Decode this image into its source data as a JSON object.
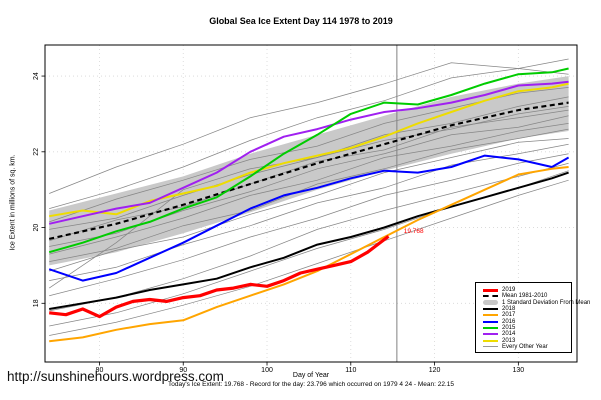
{
  "title": "Global Sea Ice Extent Day 114 1978 to 2019",
  "url_watermark": "http://sunshinehours.wordpress.com",
  "footer": {
    "stats": "Today's Ice Extent: 19.768  - Record for the day: 23.796 which occurred on 1979 4 24  - Mean: 22.15"
  },
  "chart_data": {
    "type": "line",
    "title": "Global Sea Ice Extent Day 114 1978 to 2019",
    "xlabel": "Day of Year",
    "ylabel": "Ice Extent in millions of sq. km.",
    "xlim": [
      73.5,
      137
    ],
    "ylim": [
      16.45,
      24.82
    ],
    "xticks": [
      80,
      90,
      100,
      110,
      120,
      130
    ],
    "yticks": [
      18,
      20,
      22,
      24
    ],
    "grid": "dotted-lightgray",
    "legend_position": "bottom-right-inside",
    "today_line_day": 115.5,
    "annotations": [
      {
        "text": "19.768",
        "day": 116.2,
        "value": 19.85,
        "color": "#FF0000"
      }
    ],
    "legend": [
      {
        "label": "2019",
        "color": "#FF0000",
        "style": "thick"
      },
      {
        "label": "Mean 1981-2010",
        "color": "#000000",
        "style": "dashed"
      },
      {
        "label": "1 Standard Deviation From Mean",
        "color": "#C8C8C8",
        "style": "band"
      },
      {
        "label": "2018",
        "color": "#000000",
        "style": "medium"
      },
      {
        "label": "2017",
        "color": "#FFA500",
        "style": "medium"
      },
      {
        "label": "2016",
        "color": "#0000FF",
        "style": "medium"
      },
      {
        "label": "2015",
        "color": "#00CC00",
        "style": "medium"
      },
      {
        "label": "2014",
        "color": "#A020F0",
        "style": "medium"
      },
      {
        "label": "2013",
        "color": "#EEDC00",
        "style": "medium"
      },
      {
        "label": "Every Other Year",
        "color": "#999999",
        "style": "thin"
      }
    ],
    "series_days": [
      74,
      78,
      82,
      86,
      90,
      94,
      98,
      102,
      106,
      110,
      114,
      118,
      122,
      126,
      130,
      134,
      136
    ],
    "series": [
      {
        "name": "2013",
        "color": "#EEDC00",
        "width": 2,
        "values": [
          20.3,
          20.45,
          20.35,
          20.7,
          20.9,
          21.1,
          21.45,
          21.7,
          21.9,
          22.1,
          22.4,
          22.75,
          23.05,
          23.35,
          23.6,
          23.7,
          23.8
        ]
      },
      {
        "name": "2014",
        "color": "#A020F0",
        "width": 2,
        "values": [
          20.1,
          20.3,
          20.5,
          20.65,
          21.05,
          21.45,
          22.0,
          22.4,
          22.6,
          22.85,
          23.05,
          23.15,
          23.3,
          23.5,
          23.75,
          23.8,
          23.85
        ]
      },
      {
        "name": "2015",
        "color": "#00CC00",
        "width": 2,
        "values": [
          19.35,
          19.6,
          19.9,
          20.15,
          20.5,
          20.8,
          21.35,
          21.95,
          22.45,
          23.0,
          23.3,
          23.25,
          23.5,
          23.8,
          24.05,
          24.1,
          24.2
        ]
      },
      {
        "name": "2016",
        "color": "#0000FF",
        "width": 2,
        "values": [
          18.9,
          18.6,
          18.8,
          19.2,
          19.6,
          20.05,
          20.5,
          20.85,
          21.05,
          21.3,
          21.5,
          21.45,
          21.6,
          21.9,
          21.8,
          21.6,
          21.85
        ]
      },
      {
        "name": "2018",
        "color": "#000000",
        "width": 2,
        "values": [
          17.85,
          18.0,
          18.15,
          18.35,
          18.5,
          18.65,
          18.95,
          19.2,
          19.55,
          19.75,
          20.0,
          20.3,
          20.55,
          20.8,
          21.05,
          21.3,
          21.45
        ]
      },
      {
        "name": "2017",
        "color": "#FFA500",
        "width": 2,
        "values": [
          17.0,
          17.1,
          17.3,
          17.45,
          17.55,
          17.9,
          18.2,
          18.5,
          18.85,
          19.3,
          19.75,
          20.2,
          20.6,
          21.0,
          21.4,
          21.55,
          21.6
        ]
      }
    ],
    "series_2019": {
      "name": "2019",
      "color": "#FF0000",
      "width": 3.2,
      "days": [
        74,
        76,
        78,
        80,
        82,
        84,
        86,
        88,
        90,
        92,
        94,
        96,
        98,
        100,
        102,
        104,
        106,
        108,
        110,
        112,
        114.5
      ],
      "values": [
        17.75,
        17.7,
        17.85,
        17.65,
        17.9,
        18.05,
        18.1,
        18.05,
        18.15,
        18.2,
        18.35,
        18.4,
        18.5,
        18.45,
        18.6,
        18.8,
        18.9,
        19.0,
        19.1,
        19.35,
        19.768
      ]
    },
    "mean_1981_2010": {
      "days": [
        74,
        82,
        90,
        98,
        106,
        114,
        122,
        130,
        136
      ],
      "values": [
        19.7,
        20.1,
        20.6,
        21.15,
        21.7,
        22.2,
        22.7,
        23.1,
        23.3
      ]
    },
    "std_band": {
      "days": [
        74,
        82,
        90,
        98,
        106,
        114,
        122,
        130,
        136
      ],
      "top": [
        20.45,
        20.9,
        21.35,
        21.95,
        22.45,
        22.95,
        23.45,
        23.8,
        24.0
      ],
      "bottom": [
        19.0,
        19.35,
        19.85,
        20.4,
        21.0,
        21.5,
        21.95,
        22.35,
        22.55
      ],
      "fill": "#C9C9C9"
    },
    "every_other_year_days": [
      74,
      82,
      90,
      98,
      106,
      114,
      122,
      130,
      136
    ],
    "every_other_year": [
      [
        20.9,
        21.6,
        22.2,
        22.9,
        23.3,
        23.796,
        24.35,
        24.2,
        24.45
      ],
      [
        20.5,
        21.0,
        21.6,
        22.3,
        22.9,
        23.35,
        23.95,
        24.2,
        24.05
      ],
      [
        20.15,
        20.75,
        21.25,
        21.8,
        22.15,
        22.75,
        23.15,
        23.55,
        23.7
      ],
      [
        19.95,
        20.25,
        20.85,
        21.4,
        21.85,
        22.45,
        22.75,
        23.2,
        23.45
      ],
      [
        19.65,
        20.2,
        20.55,
        21.15,
        21.75,
        22.05,
        22.65,
        22.9,
        23.1
      ],
      [
        19.5,
        19.85,
        20.45,
        20.95,
        21.55,
        21.95,
        22.45,
        22.65,
        22.95
      ],
      [
        19.3,
        19.75,
        20.25,
        20.85,
        21.25,
        21.85,
        22.15,
        22.55,
        22.75
      ],
      [
        19.1,
        19.45,
        20.05,
        20.45,
        21.15,
        21.55,
        22.05,
        22.35,
        22.6
      ],
      [
        18.85,
        19.4,
        19.75,
        20.35,
        20.85,
        21.45,
        21.85,
        22.25,
        22.35
      ],
      [
        18.6,
        18.95,
        19.55,
        20.05,
        20.65,
        21.05,
        21.65,
        21.95,
        22.2
      ],
      [
        18.4,
        19.6,
        21.0,
        21.55,
        21.85,
        22.3,
        22.6,
        23.0,
        23.2
      ],
      [
        18.2,
        18.65,
        19.15,
        19.75,
        20.25,
        20.85,
        21.25,
        21.7,
        21.95
      ],
      [
        17.8,
        18.15,
        18.65,
        19.25,
        19.95,
        20.45,
        20.9,
        21.35,
        21.7
      ],
      [
        17.4,
        17.75,
        18.25,
        18.85,
        19.45,
        19.95,
        20.55,
        21.05,
        21.5
      ],
      [
        17.15,
        17.5,
        17.95,
        18.45,
        19.05,
        19.65,
        20.25,
        20.85,
        21.25
      ]
    ],
    "line_colors": {
      "gray_thin": "#878787",
      "today_line": "#808080",
      "grid": "#D6D6D6"
    }
  }
}
